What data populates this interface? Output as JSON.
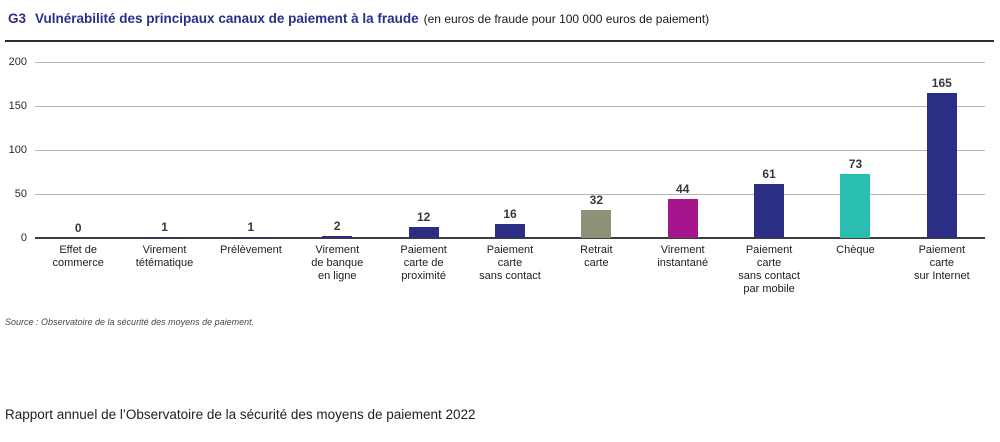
{
  "header": {
    "code": "G3",
    "title": "Vulnérabilité des principaux canaux de paiement à la fraude",
    "subtitle": "(en euros de fraude pour 100 000 euros de paiement)"
  },
  "chart_data": {
    "type": "bar",
    "title": "Vulnérabilité des principaux canaux de paiement à la fraude",
    "subtitle": "(en euros de fraude pour 100 000 euros de paiement)",
    "categories": [
      "Effet de\ncommerce",
      "Virement\ntétématique",
      "Prélèvement",
      "Virement\nde banque\nen ligne",
      "Paiement\ncarte de\nproximité",
      "Paiement\ncarte\nsans contact",
      "Retrait\ncarte",
      "Virement\ninstantané",
      "Paiement\ncarte\nsans contact\npar mobile",
      "Chèque",
      "Paiement\ncarte\nsur Internet"
    ],
    "values": [
      0,
      1,
      1,
      2,
      12,
      16,
      32,
      44,
      61,
      73,
      165
    ],
    "bar_colors": [
      "#2b2e83",
      "#2b2e83",
      "#2b2e83",
      "#2b2e83",
      "#2b2e83",
      "#2b2e83",
      "#8e9077",
      "#a5168c",
      "#2b2e83",
      "#2abdb2",
      "#2b2e83"
    ],
    "xlabel": "",
    "ylabel": "",
    "ylim": [
      0,
      200
    ],
    "yticks": [
      0,
      50,
      100,
      150,
      200
    ],
    "grid": true,
    "value_labels_shown": true,
    "legend": "none"
  },
  "colors": {
    "navy": "#2b2e83",
    "olive": "#8e9077",
    "magenta": "#a5168c",
    "teal": "#2abdb2",
    "title_blue": "#2b2f8a",
    "gridline": "#b6b6b6"
  },
  "source": "Source : Observatoire de la sécurité des moyens de paiement.",
  "footer": "Rapport annuel de l’Observatoire de la sécurité des moyens de paiement 2022"
}
